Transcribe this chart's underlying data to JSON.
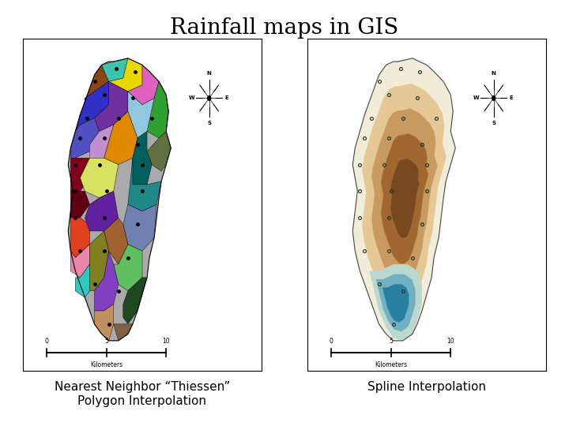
{
  "title": "Rainfall maps in GIS",
  "title_fontsize": 20,
  "title_fontfamily": "serif",
  "background_color": "#ffffff",
  "label1": "Nearest Neighbor “Thiessen”\nPolygon Interpolation",
  "label2": "Spline Interpolation",
  "label_fontsize": 11,
  "label_fontfamily": "sans-serif"
}
